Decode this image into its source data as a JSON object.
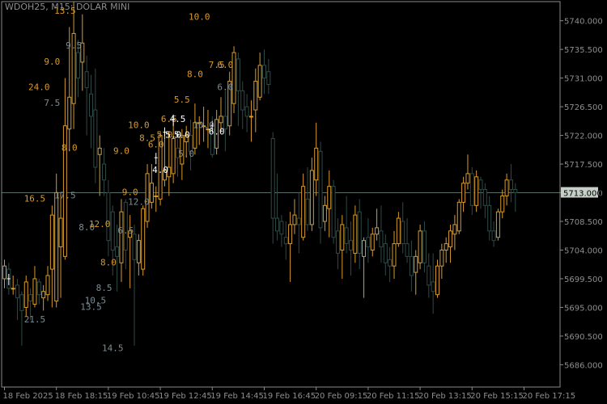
{
  "window": {
    "title": "WDOH25, M15:  DOLAR MINI"
  },
  "colors": {
    "background": "#000000",
    "frame": "#8a8a8a",
    "bull": "#d89a2a",
    "bear": "#2e4a46",
    "level_line": "#5a6d66",
    "price_tag_bg": "#c6d0c9",
    "axis_text": "#8e8e8e"
  },
  "chart_data": {
    "type": "candlestick",
    "title": "WDOH25, M15:  DOLAR MINI",
    "ylim": [
      5682.5,
      5743.0
    ],
    "price_ticks": [
      5740.0,
      5735.5,
      5731.0,
      5726.5,
      5722.0,
      5717.5,
      5713.0,
      5708.5,
      5704.0,
      5699.5,
      5695.0,
      5690.5,
      5686.0
    ],
    "price_tick_labels": [
      "5740.000",
      "5735.500",
      "5731.000",
      "5726.500",
      "5722.000",
      "5717.500",
      "5713.000",
      "5708.500",
      "5704.000",
      "5699.500",
      "5695.000",
      "5690.500",
      "5686.000"
    ],
    "last_price": 5713.0,
    "last_price_label": "5713.000",
    "time_labels": [
      {
        "index": 0,
        "label": "18 Feb 2025"
      },
      {
        "index": 12,
        "label": "18 Feb 18:15"
      },
      {
        "index": 24,
        "label": "19 Feb 10:45"
      },
      {
        "index": 36,
        "label": "19 Feb 12:45"
      },
      {
        "index": 48,
        "label": "19 Feb 14:45"
      },
      {
        "index": 60,
        "label": "19 Feb 16:45"
      },
      {
        "index": 72,
        "label": "20 Feb 09:15"
      },
      {
        "index": 84,
        "label": "20 Feb 11:15"
      },
      {
        "index": 96,
        "label": "20 Feb 13:15"
      },
      {
        "index": 108,
        "label": "20 Feb 15:15"
      },
      {
        "index": 120,
        "label": "20 Feb 17:15"
      }
    ],
    "candles": [
      {
        "o": 5699.5,
        "h": 5702.5,
        "l": 5698.0,
        "c": 5701.5
      },
      {
        "o": 5701.0,
        "h": 5702.0,
        "l": 5697.0,
        "c": 5698.0
      },
      {
        "o": 5698.0,
        "h": 5700.0,
        "l": 5697.0,
        "c": 5698.0
      },
      {
        "o": 5698.5,
        "h": 5699.5,
        "l": 5693.0,
        "c": 5696.5
      },
      {
        "o": 5697.0,
        "h": 5697.5,
        "l": 5689.0,
        "c": 5694.5
      },
      {
        "o": 5695.0,
        "h": 5700.0,
        "l": 5693.5,
        "c": 5699.0
      },
      {
        "o": 5697.0,
        "h": 5698.0,
        "l": 5693.0,
        "c": 5696.0
      },
      {
        "o": 5695.5,
        "h": 5701.5,
        "l": 5695.0,
        "c": 5699.5
      },
      {
        "o": 5699.0,
        "h": 5699.5,
        "l": 5695.5,
        "c": 5697.0
      },
      {
        "o": 5696.5,
        "h": 5698.5,
        "l": 5694.5,
        "c": 5697.5
      },
      {
        "o": 5697.0,
        "h": 5701.5,
        "l": 5696.0,
        "c": 5700.0
      },
      {
        "o": 5701.0,
        "h": 5711.0,
        "l": 5695.0,
        "c": 5709.5
      },
      {
        "o": 5696.0,
        "h": 5716.0,
        "l": 5695.0,
        "c": 5713.0
      },
      {
        "o": 5704.5,
        "h": 5713.0,
        "l": 5696.5,
        "c": 5709.0
      },
      {
        "o": 5703.0,
        "h": 5731.0,
        "l": 5702.5,
        "c": 5723.5
      },
      {
        "o": 5723.0,
        "h": 5739.0,
        "l": 5719.5,
        "c": 5728.0
      },
      {
        "o": 5727.0,
        "h": 5743.0,
        "l": 5723.0,
        "c": 5738.0
      },
      {
        "o": 5735.0,
        "h": 5737.0,
        "l": 5728.0,
        "c": 5731.0
      },
      {
        "o": 5733.5,
        "h": 5741.0,
        "l": 5729.0,
        "c": 5736.5
      },
      {
        "o": 5732.0,
        "h": 5734.5,
        "l": 5722.0,
        "c": 5729.5
      },
      {
        "o": 5728.5,
        "h": 5731.5,
        "l": 5720.0,
        "c": 5725.0
      },
      {
        "o": 5726.0,
        "h": 5732.5,
        "l": 5714.5,
        "c": 5717.0
      },
      {
        "o": 5719.0,
        "h": 5722.0,
        "l": 5712.5,
        "c": 5720.0
      },
      {
        "o": 5717.5,
        "h": 5720.0,
        "l": 5712.5,
        "c": 5715.0
      },
      {
        "o": 5713.0,
        "h": 5715.0,
        "l": 5703.0,
        "c": 5705.5
      },
      {
        "o": 5710.0,
        "h": 5711.0,
        "l": 5700.0,
        "c": 5704.0
      },
      {
        "o": 5704.5,
        "h": 5708.0,
        "l": 5697.5,
        "c": 5703.0
      },
      {
        "o": 5702.0,
        "h": 5712.0,
        "l": 5699.0,
        "c": 5710.0
      },
      {
        "o": 5711.5,
        "h": 5712.0,
        "l": 5701.0,
        "c": 5704.0
      },
      {
        "o": 5706.0,
        "h": 5709.5,
        "l": 5698.0,
        "c": 5707.0
      },
      {
        "o": 5706.5,
        "h": 5708.0,
        "l": 5689.0,
        "c": 5702.5
      },
      {
        "o": 5702.0,
        "h": 5706.5,
        "l": 5700.0,
        "c": 5705.5
      },
      {
        "o": 5701.0,
        "h": 5711.0,
        "l": 5700.0,
        "c": 5710.5
      },
      {
        "o": 5708.5,
        "h": 5717.5,
        "l": 5707.5,
        "c": 5716.0
      },
      {
        "o": 5711.5,
        "h": 5717.5,
        "l": 5710.5,
        "c": 5714.5
      },
      {
        "o": 5712.5,
        "h": 5714.0,
        "l": 5710.0,
        "c": 5712.5
      },
      {
        "o": 5712.0,
        "h": 5722.5,
        "l": 5711.0,
        "c": 5722.0
      },
      {
        "o": 5715.0,
        "h": 5723.0,
        "l": 5714.0,
        "c": 5716.5
      },
      {
        "o": 5715.5,
        "h": 5722.5,
        "l": 5712.5,
        "c": 5717.0
      },
      {
        "o": 5716.0,
        "h": 5724.0,
        "l": 5714.5,
        "c": 5721.5
      },
      {
        "o": 5720.0,
        "h": 5721.5,
        "l": 5715.5,
        "c": 5718.5
      },
      {
        "o": 5717.5,
        "h": 5723.0,
        "l": 5715.0,
        "c": 5722.0
      },
      {
        "o": 5721.0,
        "h": 5723.5,
        "l": 5718.5,
        "c": 5722.0
      },
      {
        "o": 5722.0,
        "h": 5724.5,
        "l": 5716.5,
        "c": 5719.5
      },
      {
        "o": 5720.0,
        "h": 5727.0,
        "l": 5719.0,
        "c": 5724.0
      },
      {
        "o": 5724.0,
        "h": 5725.0,
        "l": 5720.5,
        "c": 5724.0
      },
      {
        "o": 5723.5,
        "h": 5726.5,
        "l": 5721.0,
        "c": 5723.5
      },
      {
        "o": 5723.0,
        "h": 5726.0,
        "l": 5720.0,
        "c": 5723.0
      },
      {
        "o": 5723.0,
        "h": 5725.0,
        "l": 5718.5,
        "c": 5719.0
      },
      {
        "o": 5720.0,
        "h": 5726.0,
        "l": 5719.0,
        "c": 5724.5
      },
      {
        "o": 5724.0,
        "h": 5728.0,
        "l": 5722.5,
        "c": 5725.0
      },
      {
        "o": 5725.0,
        "h": 5729.0,
        "l": 5719.5,
        "c": 5723.0
      },
      {
        "o": 5723.5,
        "h": 5732.0,
        "l": 5722.0,
        "c": 5730.5
      },
      {
        "o": 5727.0,
        "h": 5736.0,
        "l": 5725.5,
        "c": 5735.0
      },
      {
        "o": 5734.0,
        "h": 5735.0,
        "l": 5723.5,
        "c": 5729.0
      },
      {
        "o": 5729.0,
        "h": 5730.5,
        "l": 5723.0,
        "c": 5726.0
      },
      {
        "o": 5726.5,
        "h": 5728.5,
        "l": 5722.5,
        "c": 5725.0
      },
      {
        "o": 5725.0,
        "h": 5727.5,
        "l": 5721.0,
        "c": 5725.0
      },
      {
        "o": 5726.0,
        "h": 5732.5,
        "l": 5722.5,
        "c": 5730.5
      },
      {
        "o": 5728.0,
        "h": 5735.0,
        "l": 5727.5,
        "c": 5733.0
      },
      {
        "o": 5733.0,
        "h": 5735.5,
        "l": 5728.5,
        "c": 5731.0
      },
      {
        "o": 5732.0,
        "h": 5734.0,
        "l": 5728.5,
        "c": 5730.0
      },
      {
        "o": 5721.5,
        "h": 5722.5,
        "l": 5705.0,
        "c": 5709.0
      },
      {
        "o": 5709.0,
        "h": 5716.0,
        "l": 5705.5,
        "c": 5707.0
      },
      {
        "o": 5708.5,
        "h": 5709.5,
        "l": 5704.5,
        "c": 5706.5
      },
      {
        "o": 5706.0,
        "h": 5708.5,
        "l": 5702.5,
        "c": 5705.0
      },
      {
        "o": 5705.0,
        "h": 5710.0,
        "l": 5699.0,
        "c": 5708.0
      },
      {
        "o": 5708.0,
        "h": 5712.0,
        "l": 5706.5,
        "c": 5709.5
      },
      {
        "o": 5709.0,
        "h": 5713.0,
        "l": 5703.5,
        "c": 5708.0
      },
      {
        "o": 5706.0,
        "h": 5716.0,
        "l": 5705.5,
        "c": 5714.0
      },
      {
        "o": 5712.0,
        "h": 5717.0,
        "l": 5707.0,
        "c": 5708.0
      },
      {
        "o": 5708.0,
        "h": 5718.5,
        "l": 5707.0,
        "c": 5716.5
      },
      {
        "o": 5715.0,
        "h": 5724.0,
        "l": 5712.5,
        "c": 5720.0
      },
      {
        "o": 5719.5,
        "h": 5721.0,
        "l": 5705.0,
        "c": 5707.5
      },
      {
        "o": 5708.5,
        "h": 5712.5,
        "l": 5707.0,
        "c": 5711.0
      },
      {
        "o": 5710.5,
        "h": 5716.5,
        "l": 5706.0,
        "c": 5714.0
      },
      {
        "o": 5714.0,
        "h": 5715.0,
        "l": 5705.0,
        "c": 5706.0
      },
      {
        "o": 5707.0,
        "h": 5709.0,
        "l": 5701.0,
        "c": 5703.5
      },
      {
        "o": 5704.0,
        "h": 5709.5,
        "l": 5699.5,
        "c": 5708.0
      },
      {
        "o": 5707.5,
        "h": 5712.5,
        "l": 5703.5,
        "c": 5705.0
      },
      {
        "o": 5705.5,
        "h": 5708.5,
        "l": 5700.0,
        "c": 5704.0
      },
      {
        "o": 5703.5,
        "h": 5711.0,
        "l": 5702.0,
        "c": 5709.5
      },
      {
        "o": 5710.0,
        "h": 5712.0,
        "l": 5701.0,
        "c": 5703.5
      },
      {
        "o": 5703.0,
        "h": 5706.0,
        "l": 5696.5,
        "c": 5705.5
      },
      {
        "o": 5706.0,
        "h": 5709.0,
        "l": 5702.0,
        "c": 5704.5
      },
      {
        "o": 5704.0,
        "h": 5707.5,
        "l": 5703.0,
        "c": 5706.5
      },
      {
        "o": 5706.5,
        "h": 5710.5,
        "l": 5705.5,
        "c": 5707.5
      },
      {
        "o": 5707.0,
        "h": 5711.0,
        "l": 5702.0,
        "c": 5704.5
      },
      {
        "o": 5705.0,
        "h": 5706.5,
        "l": 5700.0,
        "c": 5702.0
      },
      {
        "o": 5702.5,
        "h": 5704.5,
        "l": 5699.0,
        "c": 5701.5
      },
      {
        "o": 5701.5,
        "h": 5707.0,
        "l": 5699.5,
        "c": 5705.0
      },
      {
        "o": 5705.0,
        "h": 5710.0,
        "l": 5704.5,
        "c": 5709.0
      },
      {
        "o": 5708.5,
        "h": 5711.5,
        "l": 5703.5,
        "c": 5705.0
      },
      {
        "o": 5705.0,
        "h": 5709.0,
        "l": 5702.0,
        "c": 5703.0
      },
      {
        "o": 5703.0,
        "h": 5705.5,
        "l": 5697.5,
        "c": 5700.0
      },
      {
        "o": 5700.5,
        "h": 5704.0,
        "l": 5697.0,
        "c": 5703.0
      },
      {
        "o": 5702.0,
        "h": 5708.0,
        "l": 5701.0,
        "c": 5707.0
      },
      {
        "o": 5707.0,
        "h": 5708.5,
        "l": 5700.5,
        "c": 5702.0
      },
      {
        "o": 5701.5,
        "h": 5703.5,
        "l": 5696.5,
        "c": 5698.5
      },
      {
        "o": 5699.0,
        "h": 5703.5,
        "l": 5694.0,
        "c": 5697.5
      },
      {
        "o": 5697.0,
        "h": 5702.5,
        "l": 5696.5,
        "c": 5701.5
      },
      {
        "o": 5701.5,
        "h": 5705.0,
        "l": 5699.5,
        "c": 5704.0
      },
      {
        "o": 5704.0,
        "h": 5706.0,
        "l": 5702.0,
        "c": 5705.0
      },
      {
        "o": 5704.5,
        "h": 5708.0,
        "l": 5702.0,
        "c": 5707.0
      },
      {
        "o": 5706.5,
        "h": 5709.5,
        "l": 5704.0,
        "c": 5708.0
      },
      {
        "o": 5707.0,
        "h": 5712.0,
        "l": 5706.5,
        "c": 5711.5
      },
      {
        "o": 5711.5,
        "h": 5715.5,
        "l": 5710.0,
        "c": 5714.5
      },
      {
        "o": 5714.5,
        "h": 5719.0,
        "l": 5713.5,
        "c": 5716.0
      },
      {
        "o": 5716.0,
        "h": 5717.0,
        "l": 5709.5,
        "c": 5711.0
      },
      {
        "o": 5711.0,
        "h": 5716.5,
        "l": 5710.0,
        "c": 5715.5
      },
      {
        "o": 5715.0,
        "h": 5715.5,
        "l": 5710.5,
        "c": 5713.5
      },
      {
        "o": 5713.5,
        "h": 5714.5,
        "l": 5709.0,
        "c": 5711.0
      },
      {
        "o": 5711.0,
        "h": 5712.5,
        "l": 5705.5,
        "c": 5707.0
      },
      {
        "o": 5707.0,
        "h": 5708.5,
        "l": 5704.5,
        "c": 5705.5
      },
      {
        "o": 5706.0,
        "h": 5710.5,
        "l": 5705.5,
        "c": 5710.0
      },
      {
        "o": 5710.0,
        "h": 5713.5,
        "l": 5709.0,
        "c": 5712.5
      },
      {
        "o": 5712.5,
        "h": 5716.0,
        "l": 5711.0,
        "c": 5715.0
      },
      {
        "o": 5715.0,
        "h": 5717.5,
        "l": 5711.5,
        "c": 5713.5
      },
      {
        "o": 5713.5,
        "h": 5714.5,
        "l": 5710.0,
        "c": 5713.0
      }
    ],
    "annotations": [
      {
        "index": 14,
        "price": 5741.5,
        "text": "13.5",
        "color": "#d89a2a"
      },
      {
        "index": 16,
        "price": 5736.0,
        "text": "9.5",
        "color": "#7c8c92"
      },
      {
        "index": 11,
        "price": 5733.5,
        "text": "9.0",
        "color": "#d89a2a"
      },
      {
        "index": 8,
        "price": 5729.5,
        "text": "24.0",
        "color": "#d89a2a"
      },
      {
        "index": 11,
        "price": 5727.0,
        "text": "7.5",
        "color": "#7c8c92"
      },
      {
        "index": 15,
        "price": 5720.0,
        "text": "8.0",
        "color": "#d89a2a"
      },
      {
        "index": 14,
        "price": 5712.5,
        "text": "17.5",
        "color": "#7c8c92"
      },
      {
        "index": 7,
        "price": 5712.0,
        "text": "16.5",
        "color": "#d89a2a"
      },
      {
        "index": 19,
        "price": 5707.5,
        "text": "8.0",
        "color": "#7c8c92"
      },
      {
        "index": 22,
        "price": 5708.0,
        "text": "12.0",
        "color": "#d89a2a"
      },
      {
        "index": 24,
        "price": 5702.0,
        "text": "8.0",
        "color": "#d89a2a"
      },
      {
        "index": 23,
        "price": 5698.0,
        "text": "8.5",
        "color": "#7c8c92"
      },
      {
        "index": 21,
        "price": 5696.0,
        "text": "10.5",
        "color": "#7c8c92"
      },
      {
        "index": 20,
        "price": 5695.0,
        "text": "13.5",
        "color": "#7c8c92"
      },
      {
        "index": 7,
        "price": 5693.0,
        "text": "21.5",
        "color": "#7c8c92"
      },
      {
        "index": 25,
        "price": 5688.5,
        "text": "14.5",
        "color": "#7c8c92"
      },
      {
        "index": 27,
        "price": 5719.5,
        "text": "9.0",
        "color": "#d89a2a"
      },
      {
        "index": 29,
        "price": 5713.0,
        "text": "9.0",
        "color": "#d89a2a"
      },
      {
        "index": 31,
        "price": 5711.5,
        "text": "12.0",
        "color": "#7c8c92"
      },
      {
        "index": 28,
        "price": 5707.0,
        "text": "6.5",
        "color": "#7c8c92"
      },
      {
        "index": 31,
        "price": 5723.5,
        "text": "10.0",
        "color": "#d89a2a"
      },
      {
        "index": 33,
        "price": 5721.5,
        "text": "8.5",
        "color": "#d89a2a"
      },
      {
        "index": 35,
        "price": 5720.5,
        "text": "6.0",
        "color": "#d89a2a"
      },
      {
        "index": 37,
        "price": 5722.0,
        "text": "5.0",
        "color": "#d89a2a"
      },
      {
        "index": 39,
        "price": 5722.0,
        "text": "5.0",
        "color": "#d89a2a"
      },
      {
        "index": 38,
        "price": 5724.5,
        "text": "6.5",
        "color": "#d89a2a"
      },
      {
        "index": 40,
        "price": 5724.5,
        "text": "4.5",
        "color": "#ffffff"
      },
      {
        "index": 39,
        "price": 5722.0,
        "text": "5.0",
        "color": "#ffffff"
      },
      {
        "index": 41,
        "price": 5722.0,
        "text": "5.0",
        "color": "#ffffff"
      },
      {
        "index": 36,
        "price": 5716.5,
        "text": "4.0",
        "color": "#ffffff"
      },
      {
        "index": 41,
        "price": 5727.5,
        "text": "5.5",
        "color": "#d89a2a"
      },
      {
        "index": 42,
        "price": 5719.0,
        "text": "5.0",
        "color": "#7c8c92"
      },
      {
        "index": 44,
        "price": 5731.5,
        "text": "8.0",
        "color": "#d89a2a"
      },
      {
        "index": 45,
        "price": 5740.5,
        "text": "10.0",
        "color": "#d89a2a"
      },
      {
        "index": 46,
        "price": 5723.5,
        "text": "10.0",
        "color": "#7c8c92"
      },
      {
        "index": 49,
        "price": 5722.5,
        "text": "6.0",
        "color": "#ffffff"
      },
      {
        "index": 49,
        "price": 5733.0,
        "text": "7.5",
        "color": "#d89a2a"
      },
      {
        "index": 51,
        "price": 5733.0,
        "text": "6.0",
        "color": "#d89a2a"
      },
      {
        "index": 51,
        "price": 5729.5,
        "text": "6.0",
        "color": "#7c8c92"
      }
    ],
    "marks": [
      {
        "index": 1,
        "price": 5699.5
      },
      {
        "index": 35,
        "price": 5718.5
      },
      {
        "index": 37,
        "price": 5722.5
      },
      {
        "index": 39,
        "price": 5724.5
      },
      {
        "index": 48,
        "price": 5723.5
      }
    ]
  }
}
